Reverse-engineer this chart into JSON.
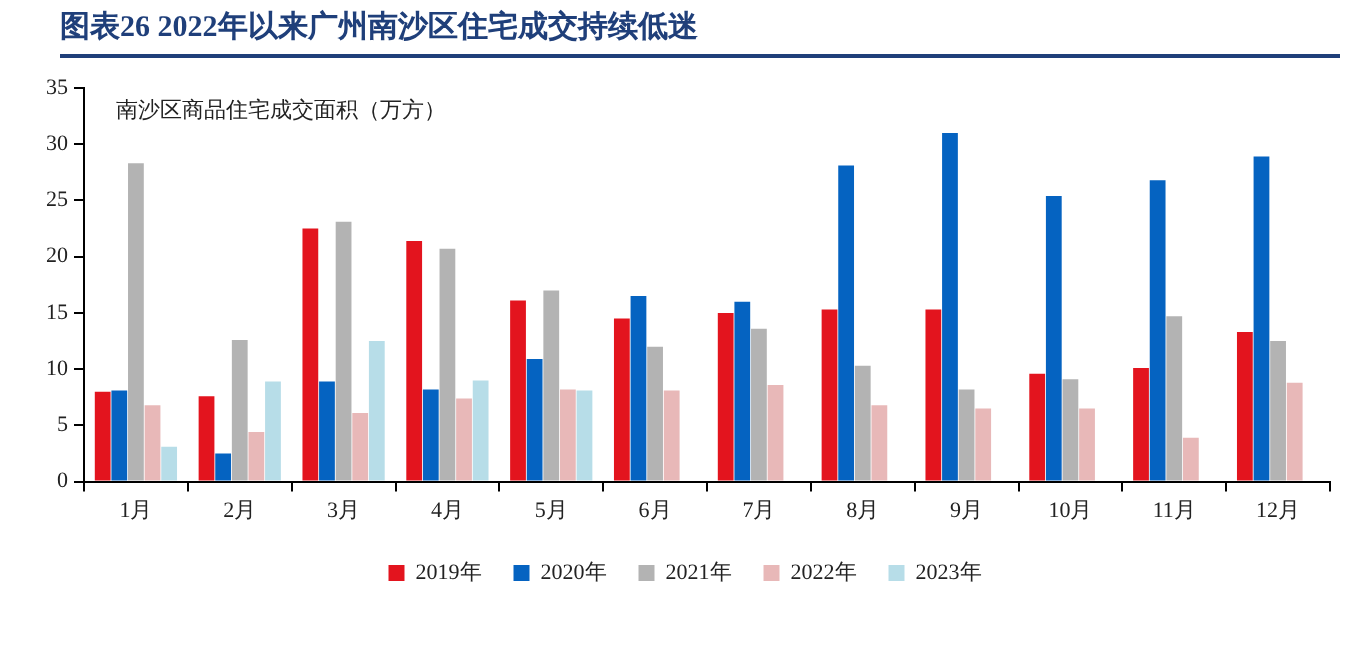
{
  "chart_data": {
    "type": "bar",
    "title": "图表26  2022年以来广州南沙区住宅成交持续低迷",
    "ylabel": "南沙区商品住宅成交面积（万方）",
    "categories": [
      "1月",
      "2月",
      "3月",
      "4月",
      "5月",
      "6月",
      "7月",
      "8月",
      "9月",
      "10月",
      "11月",
      "12月"
    ],
    "series": [
      {
        "name": "2019年",
        "color": "#e3141e",
        "values": [
          8.0,
          7.6,
          22.5,
          21.4,
          16.1,
          14.5,
          15.0,
          15.3,
          15.3,
          9.6,
          10.1,
          13.3
        ]
      },
      {
        "name": "2020年",
        "color": "#0563c1",
        "values": [
          8.1,
          2.5,
          8.9,
          8.2,
          10.9,
          16.5,
          16.0,
          28.1,
          31.0,
          25.4,
          26.8,
          28.9
        ]
      },
      {
        "name": "2021年",
        "color": "#b3b3b3",
        "values": [
          28.3,
          12.6,
          23.1,
          20.7,
          17.0,
          12.0,
          13.6,
          10.3,
          8.2,
          9.1,
          14.7,
          12.5
        ]
      },
      {
        "name": "2022年",
        "color": "#e8b8b8",
        "values": [
          6.8,
          4.4,
          6.1,
          7.4,
          8.2,
          8.1,
          8.6,
          6.8,
          6.5,
          6.5,
          3.9,
          8.8
        ]
      },
      {
        "name": "2023年",
        "color": "#b7dde8",
        "values": [
          3.1,
          8.9,
          12.5,
          9.0,
          8.1,
          null,
          null,
          null,
          null,
          null,
          null,
          null
        ]
      }
    ],
    "ylim": [
      0,
      35
    ],
    "yticks": [
      0,
      5,
      10,
      15,
      20,
      25,
      30,
      35
    ],
    "grid": false,
    "legend": "bottom"
  }
}
